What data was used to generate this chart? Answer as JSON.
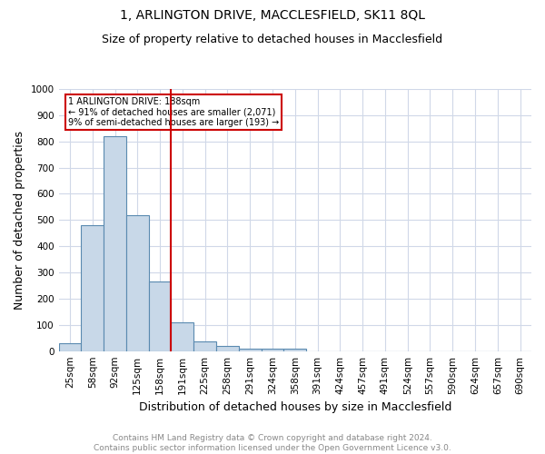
{
  "title": "1, ARLINGTON DRIVE, MACCLESFIELD, SK11 8QL",
  "subtitle": "Size of property relative to detached houses in Macclesfield",
  "xlabel": "Distribution of detached houses by size in Macclesfield",
  "ylabel": "Number of detached properties",
  "footer1": "Contains HM Land Registry data © Crown copyright and database right 2024.",
  "footer2": "Contains public sector information licensed under the Open Government Licence v3.0.",
  "bin_labels": [
    "25sqm",
    "58sqm",
    "92sqm",
    "125sqm",
    "158sqm",
    "191sqm",
    "225sqm",
    "258sqm",
    "291sqm",
    "324sqm",
    "358sqm",
    "391sqm",
    "424sqm",
    "457sqm",
    "491sqm",
    "524sqm",
    "557sqm",
    "590sqm",
    "624sqm",
    "657sqm",
    "690sqm"
  ],
  "bar_values": [
    30,
    480,
    820,
    520,
    265,
    110,
    38,
    20,
    10,
    8,
    8,
    0,
    0,
    0,
    0,
    0,
    0,
    0,
    0,
    0,
    0
  ],
  "bar_color": "#c8d8e8",
  "bar_edge_color": "#5a8ab0",
  "property_line_bin": 5,
  "property_line_color": "#cc0000",
  "annotation_text": "1 ARLINGTON DRIVE: 188sqm\n← 91% of detached houses are smaller (2,071)\n9% of semi-detached houses are larger (193) →",
  "annotation_box_color": "#cc0000",
  "annotation_text_color": "#000000",
  "ylim": [
    0,
    1000
  ],
  "title_fontsize": 10,
  "subtitle_fontsize": 9,
  "label_fontsize": 9,
  "tick_fontsize": 7.5,
  "footer_fontsize": 6.5,
  "bg_color": "#ffffff",
  "grid_color": "#d0d8e8"
}
